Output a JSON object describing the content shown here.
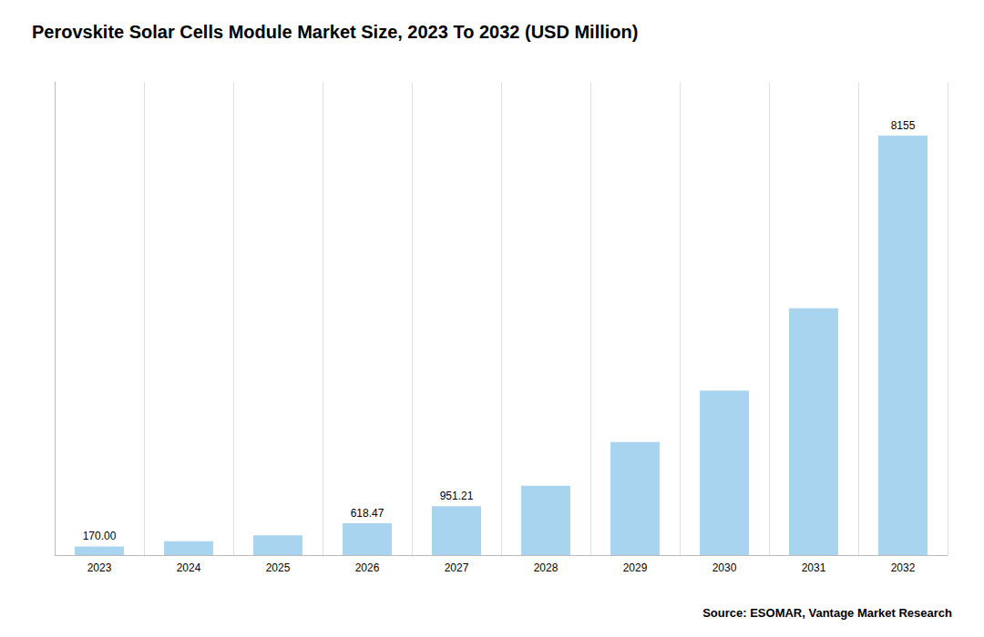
{
  "chart_data": {
    "type": "bar",
    "title": "Perovskite Solar Cells Module Market Size, 2023 To 2032 (USD Million)",
    "categories": [
      "2023",
      "2024",
      "2025",
      "2026",
      "2027",
      "2028",
      "2029",
      "2030",
      "2031",
      "2032"
    ],
    "values": [
      170.0,
      270.0,
      385.0,
      618.47,
      951.21,
      1350.0,
      2200.0,
      3200.0,
      4800.0,
      8155.0
    ],
    "value_labels": [
      "170.00",
      null,
      null,
      "618.47",
      "951.21",
      null,
      null,
      null,
      null,
      "8155"
    ],
    "color": "#a8d4f0",
    "ylim": [
      0,
      9200
    ],
    "grid": true,
    "tick_labels": "x",
    "annotations": [
      "Source: ESOMAR, Vantage Market Research"
    ]
  }
}
